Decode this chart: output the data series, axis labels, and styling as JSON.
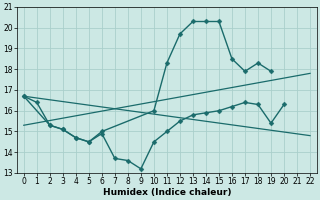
{
  "xlabel": "Humidex (Indice chaleur)",
  "xlim": [
    -0.5,
    22.5
  ],
  "ylim": [
    13,
    21
  ],
  "yticks": [
    13,
    14,
    15,
    16,
    17,
    18,
    19,
    20,
    21
  ],
  "xticks": [
    0,
    1,
    2,
    3,
    4,
    5,
    6,
    7,
    8,
    9,
    10,
    11,
    12,
    13,
    14,
    15,
    16,
    17,
    18,
    19,
    20,
    21,
    22
  ],
  "bg_color": "#cce8e4",
  "grid_color": "#aacfcb",
  "line_color": "#1a6b6b",
  "lines": [
    {
      "x": [
        0,
        1,
        2,
        3,
        4,
        5,
        6,
        7,
        8,
        9,
        10,
        11,
        12,
        13,
        14,
        15,
        16,
        17,
        18,
        19,
        20
      ],
      "y": [
        16.7,
        16.4,
        15.3,
        15.1,
        14.7,
        14.5,
        14.9,
        13.7,
        13.6,
        13.2,
        14.5,
        15.0,
        15.5,
        15.8,
        15.9,
        16.0,
        16.2,
        16.4,
        16.3,
        15.4,
        16.3
      ],
      "marker": true,
      "markersize": 2.5,
      "linewidth": 1.0
    },
    {
      "x": [
        0,
        2,
        3,
        4,
        5,
        6,
        10,
        11,
        12,
        13,
        14,
        15,
        16,
        17,
        18,
        19
      ],
      "y": [
        16.7,
        15.3,
        15.1,
        14.7,
        14.5,
        15.0,
        16.0,
        18.3,
        19.7,
        20.3,
        20.3,
        20.3,
        18.5,
        17.9,
        18.3,
        17.9
      ],
      "marker": true,
      "markersize": 2.5,
      "linewidth": 1.0
    },
    {
      "x": [
        0,
        22
      ],
      "y": [
        15.3,
        17.8
      ],
      "marker": false,
      "markersize": 0,
      "linewidth": 0.9
    },
    {
      "x": [
        0,
        22
      ],
      "y": [
        16.7,
        14.8
      ],
      "marker": false,
      "markersize": 0,
      "linewidth": 0.9
    }
  ]
}
